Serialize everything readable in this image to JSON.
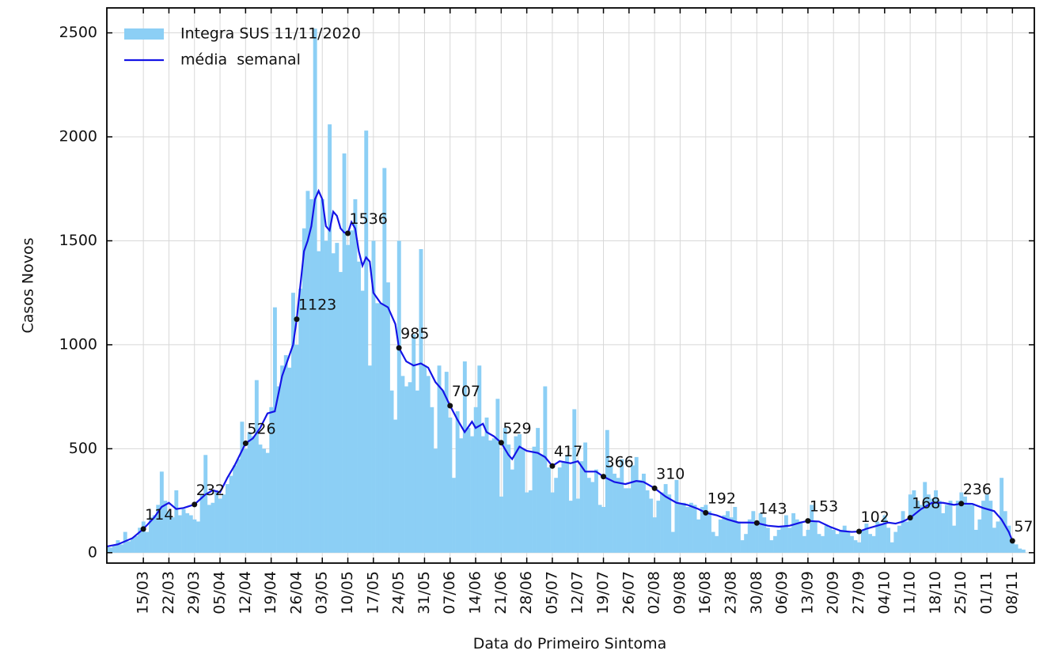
{
  "chart_data": {
    "type": "bar_line",
    "xlabel": "Data do Primeiro Sintoma",
    "ylabel": "Casos Novos",
    "xlim": [
      65,
      319
    ],
    "ylim": [
      -50,
      2620
    ],
    "yticks": [
      0,
      500,
      1000,
      1500,
      2000,
      2500
    ],
    "xticks": [
      {
        "value": 75,
        "label": "15/03"
      },
      {
        "value": 82,
        "label": "22/03"
      },
      {
        "value": 89,
        "label": "29/03"
      },
      {
        "value": 96,
        "label": "05/04"
      },
      {
        "value": 103,
        "label": "12/04"
      },
      {
        "value": 110,
        "label": "19/04"
      },
      {
        "value": 117,
        "label": "26/04"
      },
      {
        "value": 124,
        "label": "03/05"
      },
      {
        "value": 131,
        "label": "10/05"
      },
      {
        "value": 138,
        "label": "17/05"
      },
      {
        "value": 145,
        "label": "24/05"
      },
      {
        "value": 152,
        "label": "31/05"
      },
      {
        "value": 159,
        "label": "07/06"
      },
      {
        "value": 166,
        "label": "14/06"
      },
      {
        "value": 173,
        "label": "21/06"
      },
      {
        "value": 180,
        "label": "28/06"
      },
      {
        "value": 187,
        "label": "05/07"
      },
      {
        "value": 194,
        "label": "12/07"
      },
      {
        "value": 201,
        "label": "19/07"
      },
      {
        "value": 208,
        "label": "26/07"
      },
      {
        "value": 215,
        "label": "02/08"
      },
      {
        "value": 222,
        "label": "09/08"
      },
      {
        "value": 229,
        "label": "16/08"
      },
      {
        "value": 236,
        "label": "23/08"
      },
      {
        "value": 243,
        "label": "30/08"
      },
      {
        "value": 250,
        "label": "06/09"
      },
      {
        "value": 257,
        "label": "13/09"
      },
      {
        "value": 264,
        "label": "20/09"
      },
      {
        "value": 271,
        "label": "27/09"
      },
      {
        "value": 278,
        "label": "04/10"
      },
      {
        "value": 285,
        "label": "11/10"
      },
      {
        "value": 292,
        "label": "18/10"
      },
      {
        "value": 299,
        "label": "25/10"
      },
      {
        "value": 306,
        "label": "01/11"
      },
      {
        "value": 313,
        "label": "08/11"
      }
    ],
    "grid": true,
    "legend": "upper left",
    "series": [
      {
        "name": "Integra SUS 11/11/2020",
        "kind": "bar",
        "color": "#8ccff5",
        "x": [
          65,
          66,
          67,
          68,
          69,
          70,
          71,
          72,
          73,
          74,
          75,
          76,
          77,
          78,
          79,
          80,
          81,
          82,
          83,
          84,
          85,
          86,
          87,
          88,
          89,
          90,
          91,
          92,
          93,
          94,
          95,
          96,
          97,
          98,
          99,
          100,
          101,
          102,
          103,
          104,
          105,
          106,
          107,
          108,
          109,
          110,
          111,
          112,
          113,
          114,
          115,
          116,
          117,
          118,
          119,
          120,
          121,
          122,
          123,
          124,
          125,
          126,
          127,
          128,
          129,
          130,
          131,
          132,
          133,
          134,
          135,
          136,
          137,
          138,
          139,
          140,
          141,
          142,
          143,
          144,
          145,
          146,
          147,
          148,
          149,
          150,
          151,
          152,
          153,
          154,
          155,
          156,
          157,
          158,
          159,
          160,
          161,
          162,
          163,
          164,
          165,
          166,
          167,
          168,
          169,
          170,
          171,
          172,
          173,
          174,
          175,
          176,
          177,
          178,
          179,
          180,
          181,
          182,
          183,
          184,
          185,
          186,
          187,
          188,
          189,
          190,
          191,
          192,
          193,
          194,
          195,
          196,
          197,
          198,
          199,
          200,
          201,
          202,
          203,
          204,
          205,
          206,
          207,
          208,
          209,
          210,
          211,
          212,
          213,
          214,
          215,
          216,
          217,
          218,
          219,
          220,
          221,
          222,
          223,
          224,
          225,
          226,
          227,
          228,
          229,
          230,
          231,
          232,
          233,
          234,
          235,
          236,
          237,
          238,
          239,
          240,
          241,
          242,
          243,
          244,
          245,
          246,
          247,
          248,
          249,
          250,
          251,
          252,
          253,
          254,
          255,
          256,
          257,
          258,
          259,
          260,
          261,
          262,
          263,
          264,
          265,
          266,
          267,
          268,
          269,
          270,
          271,
          272,
          273,
          274,
          275,
          276,
          277,
          278,
          279,
          280,
          281,
          282,
          283,
          284,
          285,
          286,
          287,
          288,
          289,
          290,
          291,
          292,
          293,
          294,
          295,
          296,
          297,
          298,
          299,
          300,
          301,
          302,
          303,
          304,
          305,
          306,
          307,
          308,
          309,
          310,
          311,
          312,
          313,
          314,
          315,
          316
        ],
        "values": [
          30,
          25,
          35,
          60,
          40,
          100,
          55,
          70,
          80,
          120,
          150,
          100,
          170,
          180,
          230,
          390,
          250,
          200,
          170,
          300,
          180,
          210,
          190,
          180,
          160,
          150,
          280,
          470,
          230,
          240,
          300,
          260,
          280,
          330,
          370,
          420,
          450,
          630,
          500,
          580,
          560,
          830,
          520,
          500,
          480,
          700,
          1180,
          800,
          900,
          950,
          890,
          1250,
          1000,
          1270,
          1560,
          1740,
          1700,
          2520,
          1450,
          1700,
          1500,
          2060,
          1440,
          1490,
          1350,
          1920,
          1480,
          1550,
          1700,
          1400,
          1260,
          2030,
          900,
          1500,
          1200,
          1200,
          1850,
          1300,
          780,
          640,
          1500,
          850,
          800,
          820,
          1050,
          780,
          1460,
          900,
          850,
          700,
          500,
          900,
          780,
          870,
          650,
          360,
          680,
          550,
          920,
          600,
          560,
          700,
          900,
          560,
          650,
          540,
          550,
          740,
          270,
          600,
          520,
          400,
          560,
          570,
          500,
          290,
          300,
          510,
          600,
          470,
          800,
          410,
          290,
          360,
          410,
          440,
          470,
          250,
          690,
          260,
          440,
          530,
          360,
          340,
          400,
          230,
          220,
          590,
          420,
          380,
          360,
          450,
          310,
          310,
          420,
          460,
          350,
          380,
          300,
          260,
          170,
          250,
          290,
          330,
          280,
          100,
          350,
          240,
          240,
          220,
          240,
          230,
          160,
          220,
          230,
          200,
          100,
          80,
          160,
          180,
          200,
          170,
          220,
          150,
          60,
          90,
          160,
          200,
          150,
          190,
          170,
          120,
          60,
          80,
          110,
          130,
          180,
          120,
          190,
          160,
          150,
          80,
          110,
          230,
          150,
          90,
          80,
          130,
          120,
          110,
          90,
          110,
          130,
          100,
          80,
          60,
          50,
          110,
          140,
          90,
          80,
          150,
          140,
          180,
          120,
          50,
          100,
          130,
          200,
          150,
          280,
          300,
          250,
          230,
          340,
          280,
          260,
          300,
          250,
          190,
          230,
          250,
          130,
          250,
          290,
          270,
          240,
          230,
          110,
          160,
          250,
          280,
          250,
          120,
          150,
          360,
          200,
          130,
          60,
          40,
          20,
          15
        ]
      },
      {
        "name": "média  semanal",
        "kind": "line",
        "color": "#1414e6",
        "x": [
          65,
          68,
          72,
          75,
          78,
          80,
          82,
          84,
          86,
          89,
          92,
          94,
          96,
          98,
          100,
          103,
          105,
          107,
          109,
          111,
          113,
          115,
          116,
          117,
          119,
          120,
          121,
          122,
          123,
          124,
          125,
          126,
          127,
          128,
          129,
          130,
          131,
          132,
          133,
          134,
          135,
          136,
          137,
          138,
          140,
          142,
          144,
          145,
          147,
          149,
          151,
          153,
          155,
          157,
          159,
          161,
          163,
          165,
          166,
          168,
          169,
          171,
          173,
          175,
          176,
          178,
          180,
          183,
          185,
          187,
          189,
          192,
          194,
          196,
          199,
          201,
          204,
          207,
          210,
          212,
          215,
          218,
          221,
          224,
          227,
          229,
          232,
          235,
          238,
          241,
          243,
          246,
          249,
          252,
          255,
          257,
          260,
          263,
          266,
          269,
          271,
          273,
          276,
          279,
          281,
          283,
          285,
          288,
          291,
          294,
          297,
          299,
          302,
          305,
          308,
          310,
          312,
          313
        ],
        "values": [
          30,
          40,
          70,
          114,
          170,
          220,
          240,
          210,
          215,
          232,
          280,
          300,
          290,
          360,
          420,
          526,
          550,
          600,
          670,
          680,
          850,
          950,
          1000,
          1123,
          1450,
          1500,
          1570,
          1700,
          1740,
          1700,
          1570,
          1550,
          1640,
          1620,
          1560,
          1540,
          1536,
          1590,
          1560,
          1450,
          1380,
          1420,
          1400,
          1250,
          1200,
          1180,
          1100,
          985,
          920,
          900,
          910,
          890,
          820,
          780,
          707,
          640,
          580,
          630,
          600,
          620,
          580,
          560,
          529,
          470,
          450,
          510,
          490,
          480,
          460,
          417,
          440,
          430,
          440,
          390,
          390,
          366,
          340,
          330,
          345,
          340,
          310,
          270,
          240,
          230,
          210,
          192,
          180,
          160,
          145,
          145,
          143,
          130,
          125,
          130,
          145,
          153,
          150,
          125,
          105,
          100,
          102,
          115,
          130,
          145,
          140,
          150,
          168,
          210,
          240,
          240,
          230,
          236,
          235,
          215,
          200,
          160,
          100,
          57
        ]
      }
    ],
    "annotations": {
      "x": [
        75,
        89,
        103,
        117,
        131,
        145,
        159,
        173,
        187,
        201,
        215,
        229,
        243,
        257,
        271,
        285,
        299,
        313
      ],
      "values": [
        114,
        232,
        526,
        1123,
        1536,
        985,
        707,
        529,
        417,
        366,
        310,
        192,
        143,
        153,
        102,
        168,
        236,
        57
      ]
    }
  }
}
